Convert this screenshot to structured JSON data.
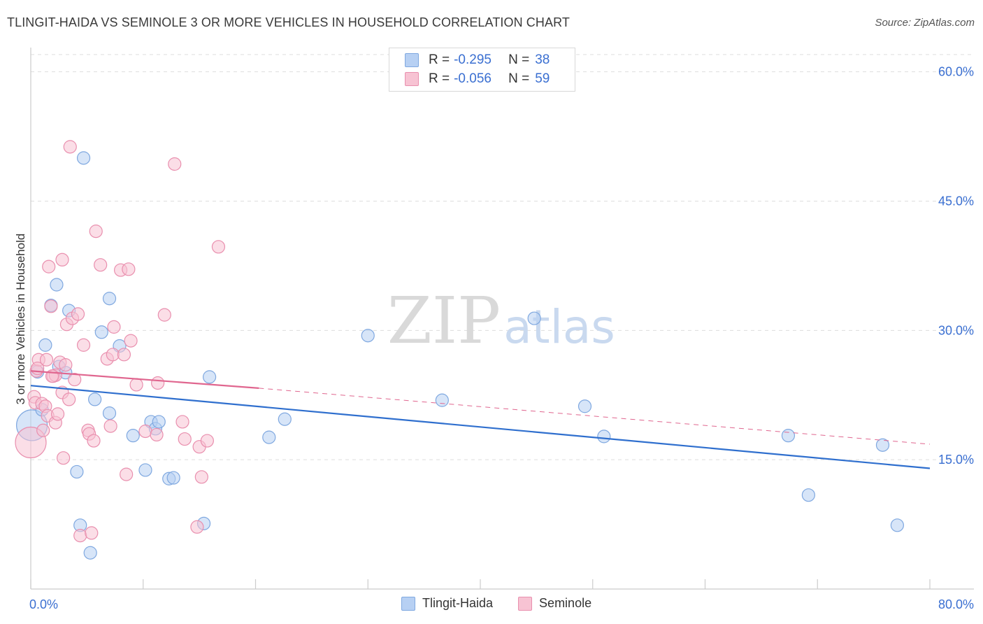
{
  "title": "TLINGIT-HAIDA VS SEMINOLE 3 OR MORE VEHICLES IN HOUSEHOLD CORRELATION CHART",
  "source": "Source: ZipAtlas.com",
  "watermark": {
    "zip": "ZIP",
    "atlas": "atlas"
  },
  "colors": {
    "blue_fill": "#b7d0f3",
    "blue_stroke": "#7fa8e0",
    "blue_line": "#2f6fce",
    "pink_fill": "#f7c3d3",
    "pink_stroke": "#e98fae",
    "pink_line": "#e0668f",
    "tick_label": "#3a6fd1",
    "grid": "#dddddd"
  },
  "legend_top": [
    {
      "series": "Tlingit-Haida",
      "r_label": "R =",
      "r_value": "-0.295",
      "n_label": "N =",
      "n_value": "38"
    },
    {
      "series": "Seminole",
      "r_label": "R =",
      "r_value": "-0.056",
      "n_label": "N =",
      "n_value": "59"
    }
  ],
  "legend_bottom": [
    "Tlingit-Haida",
    "Seminole"
  ],
  "chart_data": {
    "type": "scatter",
    "title": "TLINGIT-HAIDA VS SEMINOLE 3 OR MORE VEHICLES IN HOUSEHOLD CORRELATION CHART",
    "xlabel": "",
    "ylabel": "3 or more Vehicles in Household",
    "xlim": [
      0,
      80
    ],
    "ylim": [
      0,
      62
    ],
    "x_tick_labels": [
      "0.0%",
      "80.0%"
    ],
    "y_ticks": [
      15,
      30,
      45,
      60
    ],
    "y_tick_labels": [
      "15.0%",
      "30.0%",
      "45.0%",
      "60.0%"
    ],
    "grid": true,
    "series": [
      {
        "name": "Tlingit-Haida",
        "r": -0.295,
        "n": 38,
        "trend": {
          "x": [
            0,
            80
          ],
          "y": [
            23.6,
            14.0
          ],
          "dashed_to": null
        },
        "points": [
          {
            "x": 0.1,
            "y": 19.0,
            "big": true
          },
          {
            "x": 0.6,
            "y": 25.2
          },
          {
            "x": 1.0,
            "y": 20.8
          },
          {
            "x": 1.3,
            "y": 28.3
          },
          {
            "x": 1.8,
            "y": 32.9
          },
          {
            "x": 2.3,
            "y": 35.3
          },
          {
            "x": 2.5,
            "y": 25.8
          },
          {
            "x": 3.1,
            "y": 25.1
          },
          {
            "x": 3.4,
            "y": 32.3
          },
          {
            "x": 4.1,
            "y": 13.6
          },
          {
            "x": 4.4,
            "y": 7.4
          },
          {
            "x": 4.7,
            "y": 50.0
          },
          {
            "x": 5.3,
            "y": 4.2
          },
          {
            "x": 5.7,
            "y": 22.0
          },
          {
            "x": 6.3,
            "y": 29.8
          },
          {
            "x": 7.0,
            "y": 33.7
          },
          {
            "x": 7.0,
            "y": 20.4
          },
          {
            "x": 7.9,
            "y": 28.2
          },
          {
            "x": 9.1,
            "y": 17.8
          },
          {
            "x": 10.2,
            "y": 13.8
          },
          {
            "x": 10.7,
            "y": 19.4
          },
          {
            "x": 11.1,
            "y": 18.6
          },
          {
            "x": 11.4,
            "y": 19.4
          },
          {
            "x": 12.3,
            "y": 12.8
          },
          {
            "x": 12.7,
            "y": 12.9
          },
          {
            "x": 15.4,
            "y": 7.6
          },
          {
            "x": 15.9,
            "y": 24.6
          },
          {
            "x": 21.2,
            "y": 17.6
          },
          {
            "x": 22.6,
            "y": 19.7
          },
          {
            "x": 30.0,
            "y": 29.4
          },
          {
            "x": 36.6,
            "y": 21.9
          },
          {
            "x": 44.8,
            "y": 31.4
          },
          {
            "x": 49.3,
            "y": 21.2
          },
          {
            "x": 51.0,
            "y": 17.7
          },
          {
            "x": 67.4,
            "y": 17.8
          },
          {
            "x": 69.2,
            "y": 10.9
          },
          {
            "x": 75.8,
            "y": 16.7
          },
          {
            "x": 77.1,
            "y": 7.4
          }
        ]
      },
      {
        "name": "Seminole",
        "r": -0.056,
        "n": 59,
        "trend": {
          "x": [
            0,
            20.3
          ],
          "y": [
            25.3,
            23.3
          ],
          "dashed_x": [
            20.3,
            80
          ],
          "dashed_y": [
            23.3,
            16.8
          ]
        },
        "points": [
          {
            "x": 0.0,
            "y": 17.0,
            "big": true
          },
          {
            "x": 0.3,
            "y": 22.3
          },
          {
            "x": 0.4,
            "y": 21.6
          },
          {
            "x": 0.5,
            "y": 25.3
          },
          {
            "x": 0.7,
            "y": 26.6
          },
          {
            "x": 1.0,
            "y": 21.5
          },
          {
            "x": 1.1,
            "y": 18.4
          },
          {
            "x": 1.3,
            "y": 21.2
          },
          {
            "x": 1.4,
            "y": 26.6
          },
          {
            "x": 1.5,
            "y": 20.1
          },
          {
            "x": 1.6,
            "y": 37.4
          },
          {
            "x": 1.8,
            "y": 32.8
          },
          {
            "x": 2.0,
            "y": 24.7
          },
          {
            "x": 2.2,
            "y": 24.8
          },
          {
            "x": 2.2,
            "y": 19.3
          },
          {
            "x": 2.4,
            "y": 20.3
          },
          {
            "x": 2.6,
            "y": 26.3
          },
          {
            "x": 2.8,
            "y": 22.8
          },
          {
            "x": 2.8,
            "y": 38.2
          },
          {
            "x": 2.9,
            "y": 15.2
          },
          {
            "x": 3.1,
            "y": 26.0
          },
          {
            "x": 3.2,
            "y": 30.7
          },
          {
            "x": 3.4,
            "y": 22.0
          },
          {
            "x": 3.5,
            "y": 51.3
          },
          {
            "x": 3.7,
            "y": 31.4
          },
          {
            "x": 3.9,
            "y": 24.3
          },
          {
            "x": 4.2,
            "y": 31.9
          },
          {
            "x": 4.4,
            "y": 6.2
          },
          {
            "x": 4.7,
            "y": 28.3
          },
          {
            "x": 5.1,
            "y": 18.4
          },
          {
            "x": 5.2,
            "y": 18.0
          },
          {
            "x": 5.4,
            "y": 6.5
          },
          {
            "x": 5.6,
            "y": 17.2
          },
          {
            "x": 5.8,
            "y": 41.5
          },
          {
            "x": 6.2,
            "y": 37.6
          },
          {
            "x": 6.8,
            "y": 26.7
          },
          {
            "x": 7.1,
            "y": 18.9
          },
          {
            "x": 7.3,
            "y": 27.2
          },
          {
            "x": 7.4,
            "y": 30.4
          },
          {
            "x": 8.0,
            "y": 37.0
          },
          {
            "x": 8.3,
            "y": 27.2
          },
          {
            "x": 8.5,
            "y": 13.3
          },
          {
            "x": 8.7,
            "y": 37.1
          },
          {
            "x": 8.9,
            "y": 28.8
          },
          {
            "x": 9.4,
            "y": 23.7
          },
          {
            "x": 10.2,
            "y": 18.3
          },
          {
            "x": 11.2,
            "y": 17.9
          },
          {
            "x": 11.3,
            "y": 23.9
          },
          {
            "x": 11.9,
            "y": 31.8
          },
          {
            "x": 12.8,
            "y": 49.3
          },
          {
            "x": 13.5,
            "y": 19.4
          },
          {
            "x": 13.7,
            "y": 17.4
          },
          {
            "x": 14.8,
            "y": 7.2
          },
          {
            "x": 15.0,
            "y": 16.5
          },
          {
            "x": 15.2,
            "y": 13.0
          },
          {
            "x": 15.7,
            "y": 17.2
          },
          {
            "x": 16.7,
            "y": 39.7
          },
          {
            "x": 1.9,
            "y": 24.7
          },
          {
            "x": 0.6,
            "y": 25.6
          }
        ]
      }
    ]
  }
}
